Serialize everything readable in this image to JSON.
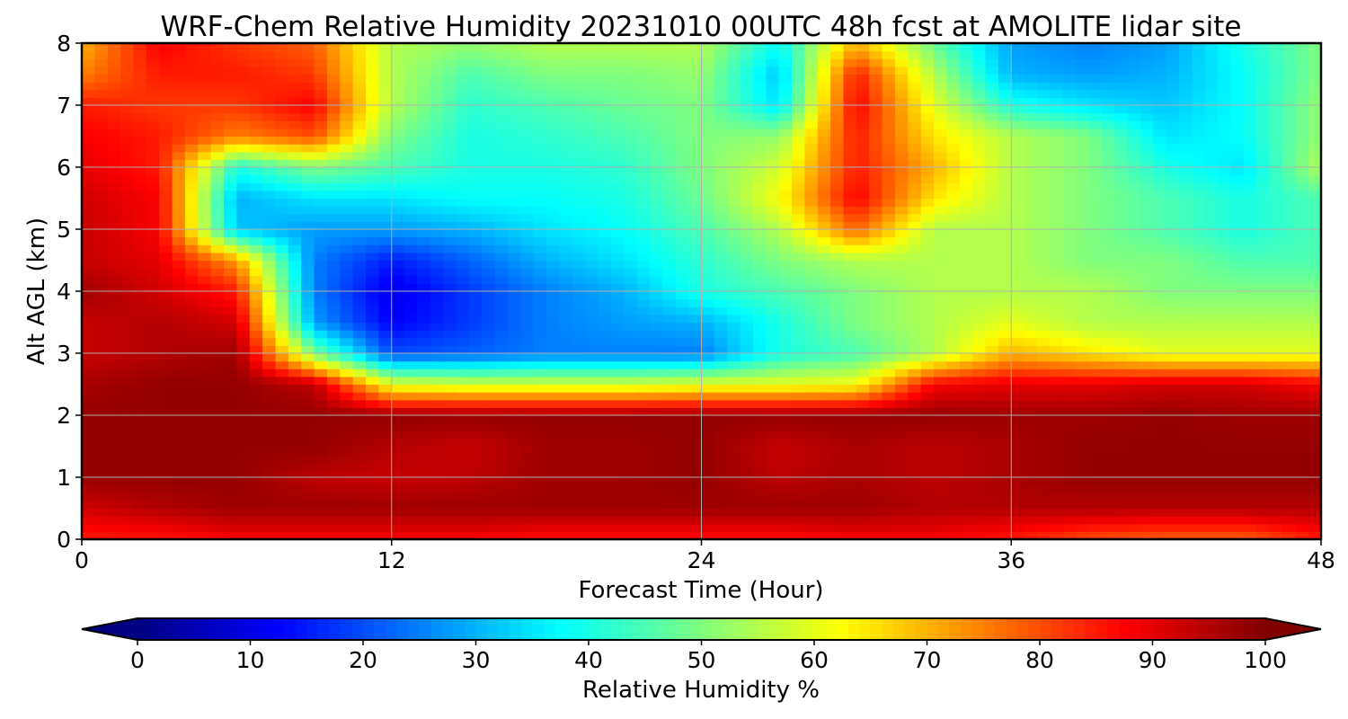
{
  "chart_data": {
    "type": "heatmap",
    "title": "WRF-Chem Relative Humidity 20231010 00UTC 48h fcst at AMOLITE lidar site",
    "xlabel": "Forecast Time (Hour)",
    "ylabel": "Alt AGL (km)",
    "xlim": [
      0,
      48
    ],
    "ylim": [
      0,
      8
    ],
    "xticks": [
      "0",
      "12",
      "24",
      "36",
      "48"
    ],
    "yticks": [
      "0",
      "1",
      "2",
      "3",
      "4",
      "5",
      "6",
      "7",
      "8"
    ],
    "grid": true,
    "colormap": "jet",
    "x": [
      0,
      3,
      6,
      9,
      12,
      15,
      18,
      21,
      24,
      27,
      30,
      33,
      36,
      39,
      42,
      45,
      48
    ],
    "y": [
      0,
      0.5,
      1,
      1.5,
      2,
      2.5,
      3,
      3.5,
      4,
      4.5,
      5,
      5.5,
      6,
      6.5,
      7,
      7.5,
      8
    ],
    "z": [
      [
        85,
        85,
        88,
        88,
        88,
        88,
        86,
        86,
        86,
        86,
        88,
        88,
        85,
        80,
        78,
        78,
        85
      ],
      [
        92,
        95,
        97,
        97,
        97,
        97,
        97,
        97,
        97,
        97,
        97,
        95,
        95,
        95,
        95,
        95,
        95
      ],
      [
        98,
        98,
        98,
        94,
        93,
        94,
        97,
        97,
        98,
        94,
        96,
        94,
        96,
        98,
        98,
        98,
        98
      ],
      [
        98,
        98,
        98,
        98,
        95,
        93,
        97,
        97,
        98,
        93,
        96,
        94,
        96,
        98,
        98,
        98,
        98
      ],
      [
        98,
        98,
        98,
        98,
        98,
        98,
        98,
        98,
        98,
        98,
        98,
        98,
        97,
        97,
        98,
        97,
        97
      ],
      [
        96,
        98,
        98,
        94,
        60,
        58,
        58,
        58,
        60,
        60,
        62,
        88,
        90,
        90,
        92,
        92,
        88
      ],
      [
        93,
        95,
        97,
        50,
        20,
        22,
        25,
        25,
        25,
        40,
        45,
        55,
        70,
        65,
        60,
        60,
        60
      ],
      [
        93,
        95,
        92,
        28,
        12,
        18,
        25,
        28,
        30,
        40,
        50,
        55,
        60,
        55,
        55,
        55,
        55
      ],
      [
        97,
        92,
        85,
        25,
        10,
        18,
        25,
        30,
        40,
        45,
        50,
        55,
        55,
        55,
        50,
        50,
        50
      ],
      [
        93,
        90,
        72,
        25,
        15,
        22,
        30,
        35,
        42,
        50,
        55,
        55,
        55,
        50,
        50,
        45,
        45
      ],
      [
        93,
        88,
        32,
        28,
        28,
        30,
        35,
        38,
        45,
        55,
        78,
        55,
        55,
        50,
        45,
        40,
        45
      ],
      [
        92,
        88,
        30,
        35,
        35,
        38,
        38,
        40,
        48,
        62,
        88,
        65,
        55,
        50,
        45,
        40,
        45
      ],
      [
        90,
        85,
        40,
        50,
        45,
        40,
        40,
        42,
        50,
        58,
        85,
        70,
        55,
        50,
        40,
        35,
        55
      ],
      [
        88,
        85,
        75,
        80,
        50,
        40,
        42,
        45,
        50,
        52,
        85,
        65,
        55,
        50,
        35,
        38,
        52
      ],
      [
        85,
        82,
        82,
        88,
        55,
        42,
        45,
        48,
        50,
        35,
        88,
        60,
        40,
        35,
        32,
        38,
        52
      ],
      [
        75,
        85,
        85,
        82,
        55,
        45,
        50,
        50,
        52,
        32,
        85,
        55,
        30,
        28,
        30,
        38,
        50
      ],
      [
        70,
        88,
        82,
        78,
        55,
        52,
        55,
        55,
        55,
        38,
        70,
        48,
        28,
        25,
        28,
        40,
        50
      ]
    ],
    "colorbar": {
      "label": "Relative Humidity %",
      "ticks": [
        "0",
        "10",
        "20",
        "30",
        "40",
        "50",
        "60",
        "70",
        "80",
        "90",
        "100"
      ],
      "range": [
        0,
        100
      ],
      "extend": "both"
    }
  }
}
